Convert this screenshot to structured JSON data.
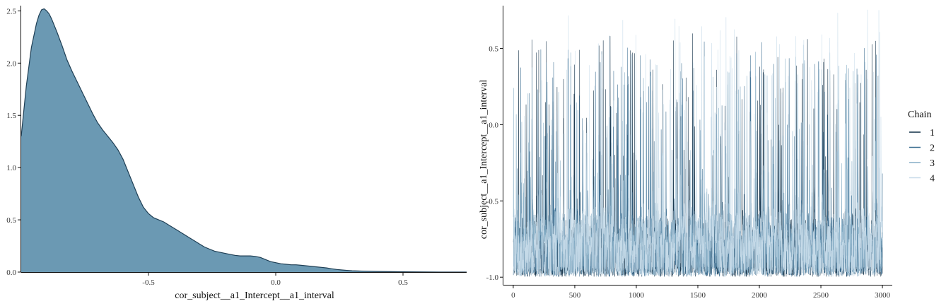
{
  "chart_data": [
    {
      "type": "area",
      "subtype": "density",
      "title": "",
      "xlabel": "cor_subject__a1_Intercept__a1_interval",
      "ylabel": "",
      "xlim": [
        -1.0,
        0.75
      ],
      "ylim": [
        0,
        2.55
      ],
      "xticks": [
        -0.5,
        0.0,
        0.5
      ],
      "xtick_labels": [
        "-0.5",
        "0.0",
        "0.5"
      ],
      "yticks": [
        0.0,
        0.5,
        1.0,
        1.5,
        2.0,
        2.5
      ],
      "ytick_labels": [
        "0.0",
        "0.5",
        "1.0",
        "1.5",
        "2.0",
        "2.5"
      ],
      "fill_color": "#6b99b3",
      "line_color": "#1f3f55",
      "grid": false,
      "points": {
        "x": [
          -1.0,
          -0.98,
          -0.96,
          -0.94,
          -0.93,
          -0.92,
          -0.91,
          -0.9,
          -0.89,
          -0.88,
          -0.86,
          -0.84,
          -0.82,
          -0.8,
          -0.78,
          -0.76,
          -0.74,
          -0.72,
          -0.7,
          -0.68,
          -0.66,
          -0.64,
          -0.62,
          -0.6,
          -0.58,
          -0.56,
          -0.54,
          -0.52,
          -0.5,
          -0.48,
          -0.46,
          -0.44,
          -0.42,
          -0.4,
          -0.38,
          -0.36,
          -0.34,
          -0.32,
          -0.3,
          -0.28,
          -0.26,
          -0.24,
          -0.22,
          -0.2,
          -0.18,
          -0.16,
          -0.14,
          -0.12,
          -0.1,
          -0.08,
          -0.06,
          -0.04,
          -0.02,
          0.0,
          0.02,
          0.04,
          0.06,
          0.08,
          0.1,
          0.12,
          0.14,
          0.16,
          0.18,
          0.2,
          0.22,
          0.24,
          0.26,
          0.28,
          0.3,
          0.35,
          0.4,
          0.45,
          0.5,
          0.55,
          0.6,
          0.65,
          0.7,
          0.75
        ],
        "y": [
          1.3,
          1.78,
          2.15,
          2.38,
          2.46,
          2.51,
          2.52,
          2.5,
          2.47,
          2.42,
          2.3,
          2.17,
          2.03,
          1.92,
          1.82,
          1.72,
          1.62,
          1.52,
          1.43,
          1.36,
          1.3,
          1.24,
          1.17,
          1.08,
          0.96,
          0.84,
          0.72,
          0.62,
          0.56,
          0.52,
          0.5,
          0.48,
          0.45,
          0.42,
          0.39,
          0.36,
          0.33,
          0.3,
          0.27,
          0.24,
          0.22,
          0.2,
          0.19,
          0.18,
          0.17,
          0.16,
          0.155,
          0.155,
          0.155,
          0.15,
          0.14,
          0.12,
          0.1,
          0.09,
          0.08,
          0.075,
          0.07,
          0.07,
          0.065,
          0.06,
          0.055,
          0.05,
          0.045,
          0.04,
          0.032,
          0.025,
          0.02,
          0.016,
          0.013,
          0.009,
          0.006,
          0.004,
          0.003,
          0.002,
          0.001,
          0.0,
          0.0,
          0.0
        ]
      }
    },
    {
      "type": "line",
      "subtype": "trace",
      "title": "",
      "xlabel": "",
      "ylabel": "cor_subject__a1_Intercept__a1_interval",
      "xlim": [
        -80,
        3080
      ],
      "ylim": [
        -1.05,
        0.78
      ],
      "xticks": [
        0,
        500,
        1000,
        1500,
        2000,
        2500,
        3000
      ],
      "xtick_labels": [
        "0",
        "500",
        "1000",
        "1500",
        "2000",
        "2500",
        "3000"
      ],
      "yticks": [
        -1.0,
        -0.5,
        0.0,
        0.5
      ],
      "ytick_labels": [
        "-1.0",
        "-0.5",
        "0.0",
        "0.5"
      ],
      "iterations": 3000,
      "grid": false,
      "legend": {
        "title": "Chain",
        "placement": "right"
      },
      "series": [
        {
          "name": "1",
          "color": "#0f2d45",
          "seed": 11,
          "mean": -0.78,
          "spread": 0.32,
          "spike_rate": 0.045,
          "spike_max": 0.62
        },
        {
          "name": "2",
          "color": "#3c6e91",
          "seed": 23,
          "mean": -0.76,
          "spread": 0.3,
          "spike_rate": 0.04,
          "spike_max": 0.55
        },
        {
          "name": "3",
          "color": "#86aec6",
          "seed": 37,
          "mean": -0.74,
          "spread": 0.3,
          "spike_rate": 0.04,
          "spike_max": 0.5
        },
        {
          "name": "4",
          "color": "#c8dcea",
          "seed": 53,
          "mean": -0.72,
          "spread": 0.32,
          "spike_rate": 0.045,
          "spike_max": 0.76
        }
      ]
    }
  ]
}
